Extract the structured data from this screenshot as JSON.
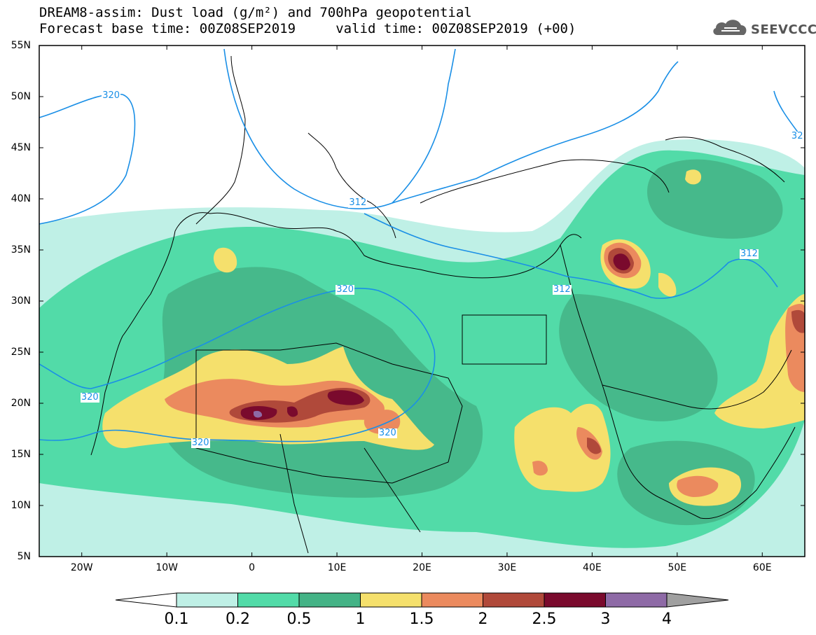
{
  "title": {
    "line1": "DREAM8-assim: Dust load (g/m²) and 700hPa geopotential",
    "line2": "Forecast base time: 00Z08SEP2019     valid time: 00Z08SEP2019 (+00)"
  },
  "logo": {
    "text": "SEEVCCC",
    "icon": "cloud-logo-icon"
  },
  "axes": {
    "lat_labels": [
      "55N",
      "50N",
      "45N",
      "40N",
      "35N",
      "30N",
      "25N",
      "20N",
      "15N",
      "10N",
      "5N"
    ],
    "lon_labels": [
      "20W",
      "10W",
      "0",
      "10E",
      "20E",
      "30E",
      "40E",
      "50E",
      "60E"
    ],
    "lon_range": [
      -25,
      65
    ],
    "lat_range": [
      5,
      55
    ]
  },
  "colorbar": {
    "labels": [
      "0.1",
      "0.2",
      "0.5",
      "1",
      "1.5",
      "2",
      "2.5",
      "3",
      "4"
    ],
    "colors": [
      "#bff0e6",
      "#52dba8",
      "#44b386",
      "#f5e06c",
      "#eb8a5e",
      "#b0493a",
      "#7a0a2d",
      "#8e6aa6"
    ],
    "under_color": "#ffffff",
    "over_color": "#a0a0a0"
  },
  "contours": {
    "labels": [
      {
        "text": "320",
        "lon": -16.5,
        "lat": 50.0
      },
      {
        "text": "312",
        "lon": 12.5,
        "lat": 39.5
      },
      {
        "text": "312",
        "lon": 36.5,
        "lat": 31.0
      },
      {
        "text": "312",
        "lon": 58.5,
        "lat": 34.5
      },
      {
        "text": "320",
        "lon": 11.0,
        "lat": 31.0
      },
      {
        "text": "320",
        "lon": -19.0,
        "lat": 20.5
      },
      {
        "text": "320",
        "lon": -6.0,
        "lat": 16.0
      },
      {
        "text": "320",
        "lon": 16.0,
        "lat": 17.0
      },
      {
        "text": "32",
        "lon": 64.5,
        "lat": 46.0
      }
    ]
  }
}
